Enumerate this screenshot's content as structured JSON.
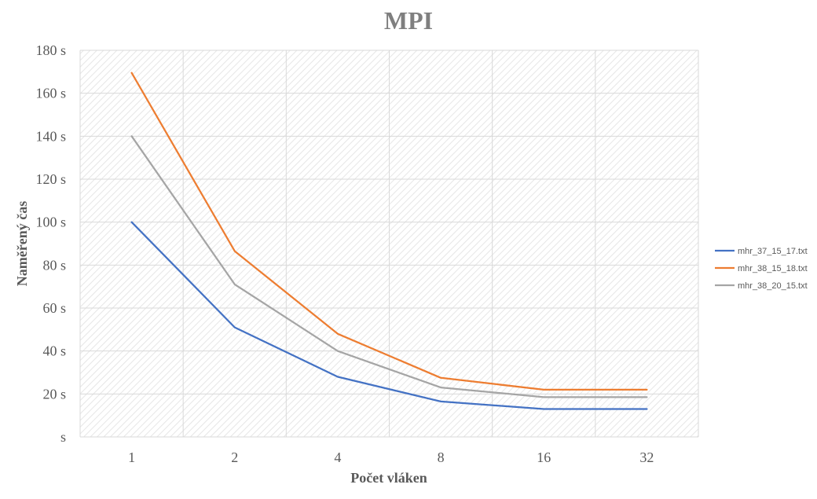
{
  "chart_data": {
    "type": "line",
    "title": "MPI",
    "xlabel": "Počet vláken",
    "ylabel": "Naměřený čas",
    "categories": [
      "1",
      "2",
      "4",
      "8",
      "16",
      "32"
    ],
    "y_ticks": [
      "s",
      "20 s",
      "40 s",
      "60 s",
      "80 s",
      "100 s",
      "120 s",
      "140 s",
      "160 s",
      "180 s"
    ],
    "ylim": [
      0,
      180
    ],
    "grid": true,
    "legend_position": "right",
    "series": [
      {
        "name": "mhr_37_15_17.txt",
        "color": "#4472c4",
        "values": [
          100,
          51,
          28,
          16.5,
          13,
          13
        ]
      },
      {
        "name": "mhr_38_15_18.txt",
        "color": "#ed7d31",
        "values": [
          169.5,
          86.5,
          48,
          27.5,
          22,
          22
        ]
      },
      {
        "name": "mhr_38_20_15.txt",
        "color": "#a5a5a5",
        "values": [
          140,
          71,
          40,
          23,
          18.5,
          18.5
        ]
      }
    ]
  }
}
